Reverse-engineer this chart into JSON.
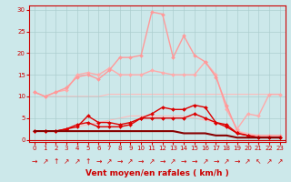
{
  "background_color": "#cce8ea",
  "grid_color": "#aacccc",
  "xlabel": "Vent moyen/en rafales ( km/h )",
  "xlabel_color": "#cc0000",
  "tick_color": "#cc0000",
  "ylim": [
    -0.5,
    31
  ],
  "xlim": [
    -0.5,
    23.5
  ],
  "yticks": [
    0,
    5,
    10,
    15,
    20,
    25,
    30
  ],
  "xticks": [
    0,
    1,
    2,
    3,
    4,
    5,
    6,
    7,
    8,
    9,
    10,
    11,
    12,
    13,
    14,
    15,
    16,
    17,
    18,
    19,
    20,
    21,
    22,
    23
  ],
  "series": [
    {
      "data": [
        11,
        10,
        10,
        10,
        10,
        10,
        10,
        10.5,
        10.5,
        10.5,
        10.5,
        10.5,
        10.5,
        10.5,
        10.5,
        10.5,
        10.5,
        10.5,
        10.5,
        10.5,
        10.5,
        10.5,
        10.5,
        10.5
      ],
      "color": "#ffbbbb",
      "linewidth": 0.8,
      "marker": null,
      "markersize": 0,
      "zorder": 1
    },
    {
      "data": [
        2,
        2,
        2,
        2.5,
        3,
        3.5,
        4,
        4.5,
        5,
        5.5,
        5.5,
        5.5,
        5.5,
        5.5,
        5.5,
        5,
        4.5,
        4,
        3,
        2,
        1.5,
        1,
        1,
        1
      ],
      "color": "#ffbbbb",
      "linewidth": 0.8,
      "marker": null,
      "markersize": 0,
      "zorder": 1
    },
    {
      "data": [
        11,
        10,
        11,
        12,
        14.5,
        15,
        14,
        16,
        19,
        19,
        19.5,
        29.5,
        29,
        19,
        24,
        19.5,
        18,
        14.5,
        8,
        2,
        1,
        1,
        1,
        1
      ],
      "color": "#ff9999",
      "linewidth": 1.0,
      "marker": "D",
      "markersize": 2.0,
      "zorder": 3
    },
    {
      "data": [
        11,
        10,
        11,
        11.5,
        15,
        15.5,
        15,
        16.5,
        15,
        15,
        15,
        16,
        15.5,
        15,
        15,
        15,
        18,
        15,
        7,
        2.5,
        6,
        5.5,
        10.5,
        10.5
      ],
      "color": "#ffaaaa",
      "linewidth": 1.0,
      "marker": "D",
      "markersize": 2.0,
      "zorder": 2
    },
    {
      "data": [
        2,
        2,
        2,
        2.5,
        3,
        5.5,
        4,
        4,
        3.5,
        4,
        5,
        6,
        7.5,
        7,
        7,
        8,
        7.5,
        4,
        3.5,
        1.5,
        1,
        0.5,
        0.5,
        0.5
      ],
      "color": "#dd0000",
      "linewidth": 1.0,
      "marker": "D",
      "markersize": 2.0,
      "zorder": 4
    },
    {
      "data": [
        2,
        2,
        2,
        2.5,
        3.5,
        4,
        3,
        3,
        3,
        3.5,
        5,
        5,
        5,
        5,
        5,
        6,
        5,
        4,
        3,
        1.5,
        1,
        0.5,
        0.5,
        0.5
      ],
      "color": "#dd0000",
      "linewidth": 1.0,
      "marker": "D",
      "markersize": 2.0,
      "zorder": 4
    },
    {
      "data": [
        2,
        2,
        2,
        2,
        2,
        2,
        2,
        2,
        2,
        2,
        2,
        2,
        2,
        2,
        1.5,
        1.5,
        1.5,
        1,
        1,
        0.5,
        0.5,
        0.5,
        0.5,
        0.5
      ],
      "color": "#880000",
      "linewidth": 1.5,
      "marker": null,
      "markersize": 0,
      "zorder": 5
    }
  ],
  "arrow_symbols": [
    "→",
    "↗",
    "↑",
    "↗",
    "↗",
    "↑",
    "→",
    "↗",
    "→",
    "↗",
    "→",
    "↗",
    "→",
    "↗",
    "→",
    "→",
    "↗",
    "→",
    "↗",
    "→",
    "↗",
    "↖",
    "↗",
    "↗"
  ],
  "arrow_color": "#cc0000",
  "arrow_fontsize": 5.5
}
